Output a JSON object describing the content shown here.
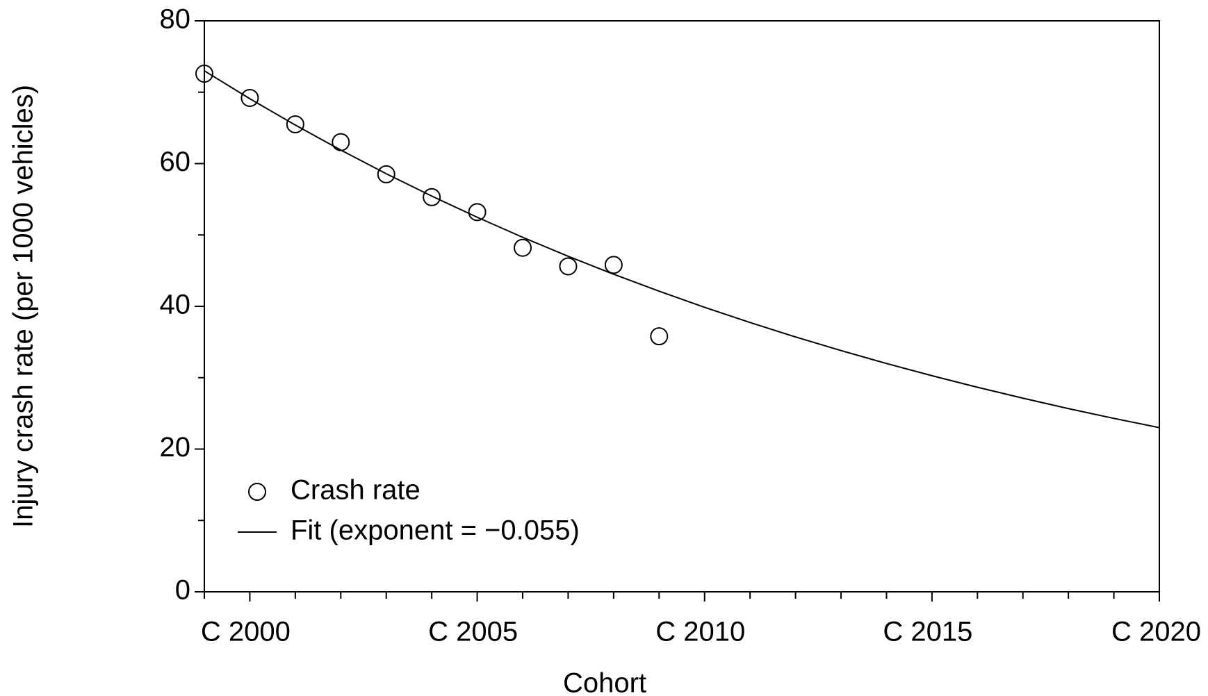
{
  "chart_data": {
    "type": "scatter",
    "x_label": "Cohort",
    "y_label": "Injury crash rate (per 1000 vehicles)",
    "xlim": [
      1999,
      2020
    ],
    "xticks": [
      {
        "value": 2000,
        "label": "C 2000"
      },
      {
        "value": 2005,
        "label": "C 2005"
      },
      {
        "value": 2010,
        "label": "C 2010"
      },
      {
        "value": 2015,
        "label": "C 2015"
      },
      {
        "value": 2020,
        "label": "C 2020"
      }
    ],
    "xminorticks": [
      1999,
      2001,
      2002,
      2003,
      2004,
      2006,
      2007,
      2008,
      2009,
      2011,
      2012,
      2013,
      2014,
      2016,
      2017,
      2018,
      2019
    ],
    "ylim": [
      0,
      80
    ],
    "yticks": [
      0,
      20,
      40,
      60,
      80
    ],
    "yminorticks": [
      10,
      30,
      50,
      70
    ],
    "legend": "lower-left",
    "series": [
      {
        "name": "Crash rate",
        "type": "scatter",
        "color": "#000000",
        "x": [
          1999,
          2000,
          2001,
          2002,
          2003,
          2004,
          2005,
          2006,
          2007,
          2008,
          2009
        ],
        "values": [
          72.6,
          69.2,
          65.5,
          63.0,
          58.5,
          55.3,
          53.2,
          48.2,
          45.6,
          45.8,
          35.8
        ]
      },
      {
        "name": "Fit (exponent = −0.055)",
        "type": "line",
        "color": "#000000",
        "x": [
          1999,
          2000,
          2001,
          2002,
          2003,
          2004,
          2005,
          2006,
          2007,
          2008,
          2009,
          2010,
          2011,
          2012,
          2013,
          2014,
          2015,
          2016,
          2017,
          2018,
          2019,
          2020
        ],
        "values": [
          73.0,
          69.09,
          65.4,
          61.9,
          58.58,
          55.45,
          52.48,
          49.67,
          47.01,
          44.5,
          42.12,
          39.86,
          37.73,
          35.71,
          33.8,
          31.99,
          30.28,
          28.66,
          27.13,
          25.67,
          24.3,
          23.0
        ]
      }
    ]
  }
}
